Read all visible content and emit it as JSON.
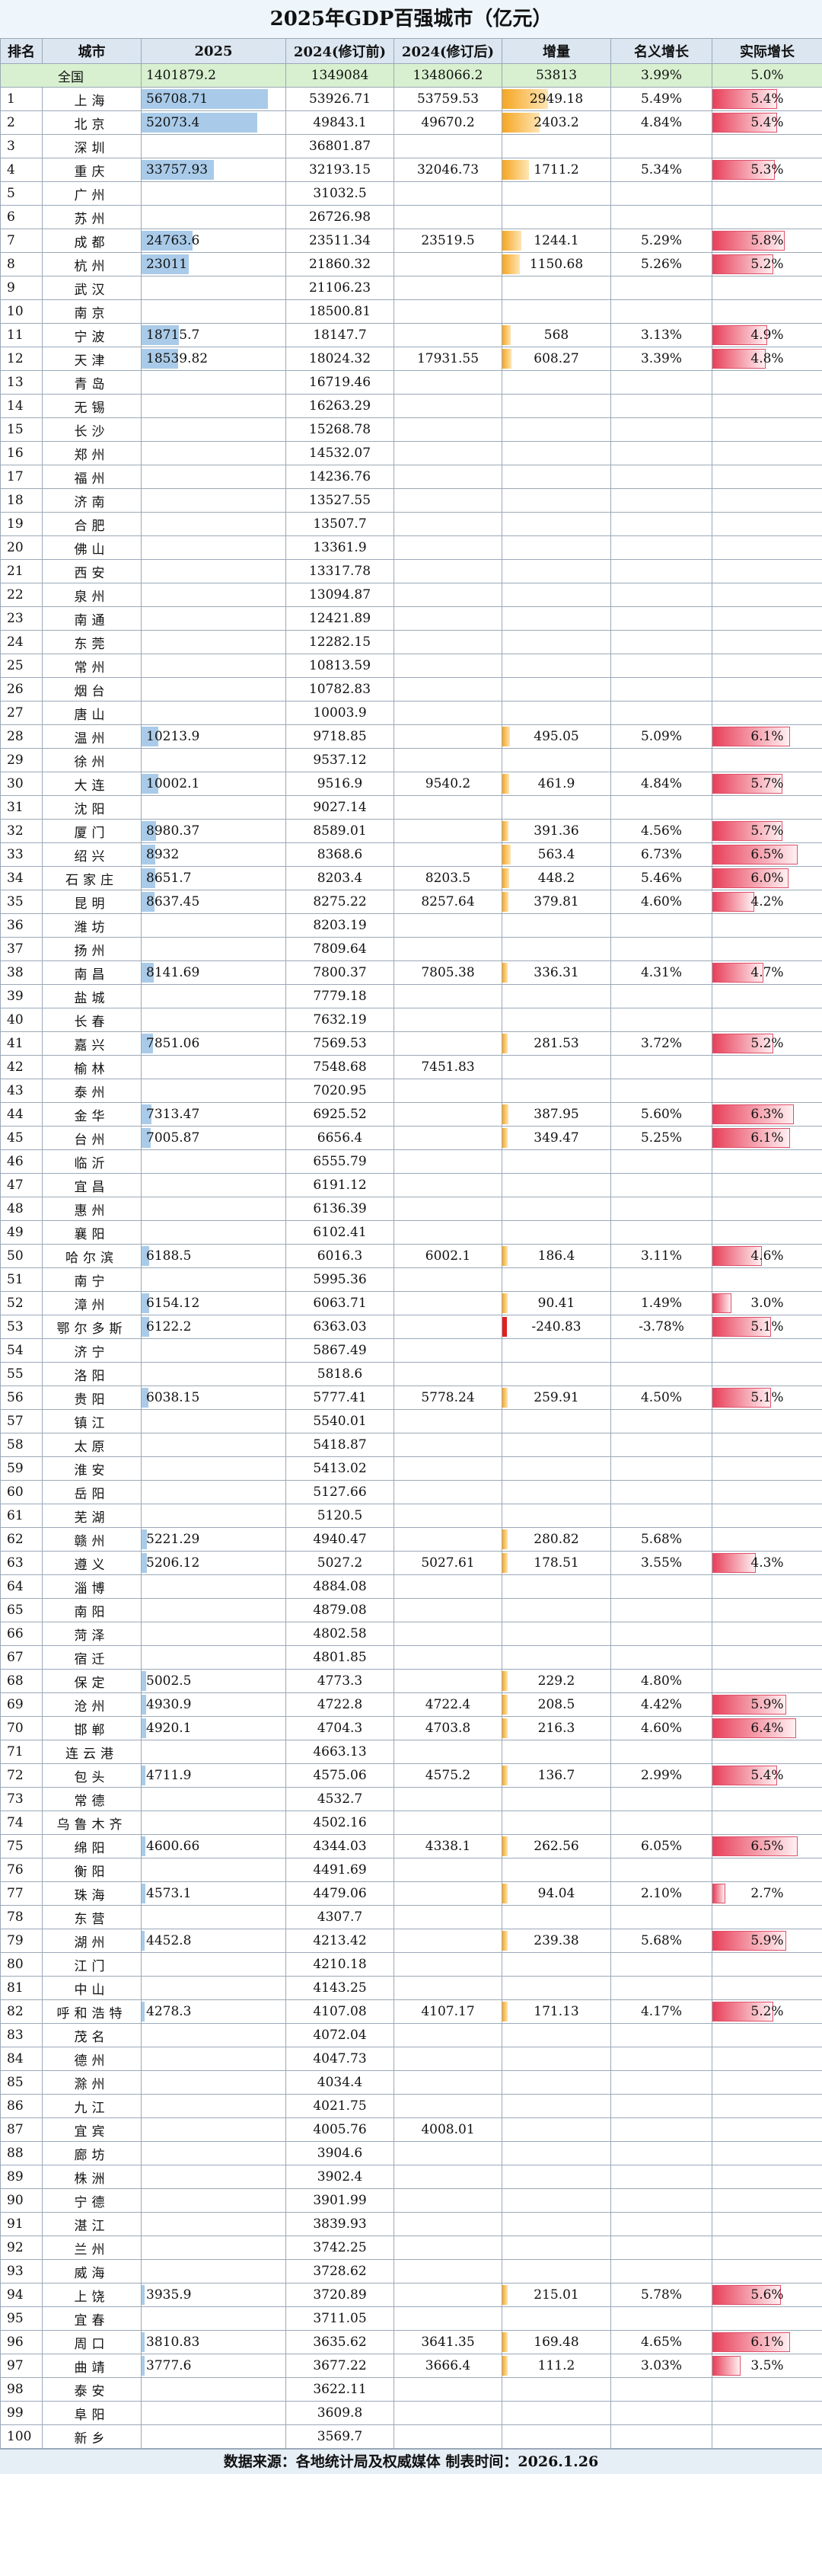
{
  "title": "2025年GDP百强城市（亿元）",
  "headers": {
    "rank": "排名",
    "city": "城市",
    "y2025": "2025",
    "y2024pre": "2024(修订前)",
    "y2024post": "2024(修订后)",
    "increase": "增量",
    "nominal": "名义增长",
    "real": "实际增长"
  },
  "total": {
    "label": "全国",
    "y2025": "1401879.2",
    "y2024pre": "1349084",
    "y2024post": "1348066.2",
    "increase": "53813",
    "nominal": "3.99%",
    "real": "5.0%"
  },
  "rows": [
    {
      "rank": "1",
      "city": "上海",
      "v25": "56708.71",
      "pre": "53926.71",
      "post": "53759.53",
      "inc": "2949.18",
      "nom": "5.49%",
      "real": "5.4%"
    },
    {
      "rank": "2",
      "city": "北京",
      "v25": "52073.4",
      "pre": "49843.1",
      "post": "49670.2",
      "inc": "2403.2",
      "nom": "4.84%",
      "real": "5.4%"
    },
    {
      "rank": "3",
      "city": "深圳",
      "v25": "",
      "pre": "36801.87",
      "post": "",
      "inc": "",
      "nom": "",
      "real": ""
    },
    {
      "rank": "4",
      "city": "重庆",
      "v25": "33757.93",
      "pre": "32193.15",
      "post": "32046.73",
      "inc": "1711.2",
      "nom": "5.34%",
      "real": "5.3%"
    },
    {
      "rank": "5",
      "city": "广州",
      "v25": "",
      "pre": "31032.5",
      "post": "",
      "inc": "",
      "nom": "",
      "real": ""
    },
    {
      "rank": "6",
      "city": "苏州",
      "v25": "",
      "pre": "26726.98",
      "post": "",
      "inc": "",
      "nom": "",
      "real": ""
    },
    {
      "rank": "7",
      "city": "成都",
      "v25": "24763.6",
      "pre": "23511.34",
      "post": "23519.5",
      "inc": "1244.1",
      "nom": "5.29%",
      "real": "5.8%"
    },
    {
      "rank": "8",
      "city": "杭州",
      "v25": "23011",
      "pre": "21860.32",
      "post": "",
      "inc": "1150.68",
      "nom": "5.26%",
      "real": "5.2%"
    },
    {
      "rank": "9",
      "city": "武汉",
      "v25": "",
      "pre": "21106.23",
      "post": "",
      "inc": "",
      "nom": "",
      "real": ""
    },
    {
      "rank": "10",
      "city": "南京",
      "v25": "",
      "pre": "18500.81",
      "post": "",
      "inc": "",
      "nom": "",
      "real": ""
    },
    {
      "rank": "11",
      "city": "宁波",
      "v25": "18715.7",
      "pre": "18147.7",
      "post": "",
      "inc": "568",
      "nom": "3.13%",
      "real": "4.9%"
    },
    {
      "rank": "12",
      "city": "天津",
      "v25": "18539.82",
      "pre": "18024.32",
      "post": "17931.55",
      "inc": "608.27",
      "nom": "3.39%",
      "real": "4.8%"
    },
    {
      "rank": "13",
      "city": "青岛",
      "v25": "",
      "pre": "16719.46",
      "post": "",
      "inc": "",
      "nom": "",
      "real": ""
    },
    {
      "rank": "14",
      "city": "无锡",
      "v25": "",
      "pre": "16263.29",
      "post": "",
      "inc": "",
      "nom": "",
      "real": ""
    },
    {
      "rank": "15",
      "city": "长沙",
      "v25": "",
      "pre": "15268.78",
      "post": "",
      "inc": "",
      "nom": "",
      "real": ""
    },
    {
      "rank": "16",
      "city": "郑州",
      "v25": "",
      "pre": "14532.07",
      "post": "",
      "inc": "",
      "nom": "",
      "real": ""
    },
    {
      "rank": "17",
      "city": "福州",
      "v25": "",
      "pre": "14236.76",
      "post": "",
      "inc": "",
      "nom": "",
      "real": ""
    },
    {
      "rank": "18",
      "city": "济南",
      "v25": "",
      "pre": "13527.55",
      "post": "",
      "inc": "",
      "nom": "",
      "real": ""
    },
    {
      "rank": "19",
      "city": "合肥",
      "v25": "",
      "pre": "13507.7",
      "post": "",
      "inc": "",
      "nom": "",
      "real": ""
    },
    {
      "rank": "20",
      "city": "佛山",
      "v25": "",
      "pre": "13361.9",
      "post": "",
      "inc": "",
      "nom": "",
      "real": ""
    },
    {
      "rank": "21",
      "city": "西安",
      "v25": "",
      "pre": "13317.78",
      "post": "",
      "inc": "",
      "nom": "",
      "real": ""
    },
    {
      "rank": "22",
      "city": "泉州",
      "v25": "",
      "pre": "13094.87",
      "post": "",
      "inc": "",
      "nom": "",
      "real": ""
    },
    {
      "rank": "23",
      "city": "南通",
      "v25": "",
      "pre": "12421.89",
      "post": "",
      "inc": "",
      "nom": "",
      "real": ""
    },
    {
      "rank": "24",
      "city": "东莞",
      "v25": "",
      "pre": "12282.15",
      "post": "",
      "inc": "",
      "nom": "",
      "real": ""
    },
    {
      "rank": "25",
      "city": "常州",
      "v25": "",
      "pre": "10813.59",
      "post": "",
      "inc": "",
      "nom": "",
      "real": ""
    },
    {
      "rank": "26",
      "city": "烟台",
      "v25": "",
      "pre": "10782.83",
      "post": "",
      "inc": "",
      "nom": "",
      "real": ""
    },
    {
      "rank": "27",
      "city": "唐山",
      "v25": "",
      "pre": "10003.9",
      "post": "",
      "inc": "",
      "nom": "",
      "real": ""
    },
    {
      "rank": "28",
      "city": "温州",
      "v25": "10213.9",
      "pre": "9718.85",
      "post": "",
      "inc": "495.05",
      "nom": "5.09%",
      "real": "6.1%"
    },
    {
      "rank": "29",
      "city": "徐州",
      "v25": "",
      "pre": "9537.12",
      "post": "",
      "inc": "",
      "nom": "",
      "real": ""
    },
    {
      "rank": "30",
      "city": "大连",
      "v25": "10002.1",
      "pre": "9516.9",
      "post": "9540.2",
      "inc": "461.9",
      "nom": "4.84%",
      "real": "5.7%"
    },
    {
      "rank": "31",
      "city": "沈阳",
      "v25": "",
      "pre": "9027.14",
      "post": "",
      "inc": "",
      "nom": "",
      "real": ""
    },
    {
      "rank": "32",
      "city": "厦门",
      "v25": "8980.37",
      "pre": "8589.01",
      "post": "",
      "inc": "391.36",
      "nom": "4.56%",
      "real": "5.7%"
    },
    {
      "rank": "33",
      "city": "绍兴",
      "v25": "8932",
      "pre": "8368.6",
      "post": "",
      "inc": "563.4",
      "nom": "6.73%",
      "real": "6.5%"
    },
    {
      "rank": "34",
      "city": "石家庄",
      "v25": "8651.7",
      "pre": "8203.4",
      "post": "8203.5",
      "inc": "448.2",
      "nom": "5.46%",
      "real": "6.0%"
    },
    {
      "rank": "35",
      "city": "昆明",
      "v25": "8637.45",
      "pre": "8275.22",
      "post": "8257.64",
      "inc": "379.81",
      "nom": "4.60%",
      "real": "4.2%"
    },
    {
      "rank": "36",
      "city": "潍坊",
      "v25": "",
      "pre": "8203.19",
      "post": "",
      "inc": "",
      "nom": "",
      "real": ""
    },
    {
      "rank": "37",
      "city": "扬州",
      "v25": "",
      "pre": "7809.64",
      "post": "",
      "inc": "",
      "nom": "",
      "real": ""
    },
    {
      "rank": "38",
      "city": "南昌",
      "v25": "8141.69",
      "pre": "7800.37",
      "post": "7805.38",
      "inc": "336.31",
      "nom": "4.31%",
      "real": "4.7%"
    },
    {
      "rank": "39",
      "city": "盐城",
      "v25": "",
      "pre": "7779.18",
      "post": "",
      "inc": "",
      "nom": "",
      "real": ""
    },
    {
      "rank": "40",
      "city": "长春",
      "v25": "",
      "pre": "7632.19",
      "post": "",
      "inc": "",
      "nom": "",
      "real": ""
    },
    {
      "rank": "41",
      "city": "嘉兴",
      "v25": "7851.06",
      "pre": "7569.53",
      "post": "",
      "inc": "281.53",
      "nom": "3.72%",
      "real": "5.2%"
    },
    {
      "rank": "42",
      "city": "榆林",
      "v25": "",
      "pre": "7548.68",
      "post": "7451.83",
      "inc": "",
      "nom": "",
      "real": ""
    },
    {
      "rank": "43",
      "city": "泰州",
      "v25": "",
      "pre": "7020.95",
      "post": "",
      "inc": "",
      "nom": "",
      "real": ""
    },
    {
      "rank": "44",
      "city": "金华",
      "v25": "7313.47",
      "pre": "6925.52",
      "post": "",
      "inc": "387.95",
      "nom": "5.60%",
      "real": "6.3%"
    },
    {
      "rank": "45",
      "city": "台州",
      "v25": "7005.87",
      "pre": "6656.4",
      "post": "",
      "inc": "349.47",
      "nom": "5.25%",
      "real": "6.1%"
    },
    {
      "rank": "46",
      "city": "临沂",
      "v25": "",
      "pre": "6555.79",
      "post": "",
      "inc": "",
      "nom": "",
      "real": ""
    },
    {
      "rank": "47",
      "city": "宜昌",
      "v25": "",
      "pre": "6191.12",
      "post": "",
      "inc": "",
      "nom": "",
      "real": ""
    },
    {
      "rank": "48",
      "city": "惠州",
      "v25": "",
      "pre": "6136.39",
      "post": "",
      "inc": "",
      "nom": "",
      "real": ""
    },
    {
      "rank": "49",
      "city": "襄阳",
      "v25": "",
      "pre": "6102.41",
      "post": "",
      "inc": "",
      "nom": "",
      "real": ""
    },
    {
      "rank": "50",
      "city": "哈尔滨",
      "v25": "6188.5",
      "pre": "6016.3",
      "post": "6002.1",
      "inc": "186.4",
      "nom": "3.11%",
      "real": "4.6%"
    },
    {
      "rank": "51",
      "city": "南宁",
      "v25": "",
      "pre": "5995.36",
      "post": "",
      "inc": "",
      "nom": "",
      "real": ""
    },
    {
      "rank": "52",
      "city": "漳州",
      "v25": "6154.12",
      "pre": "6063.71",
      "post": "",
      "inc": "90.41",
      "nom": "1.49%",
      "real": "3.0%"
    },
    {
      "rank": "53",
      "city": "鄂尔多斯",
      "v25": "6122.2",
      "pre": "6363.03",
      "post": "",
      "inc": "-240.83",
      "nom": "-3.78%",
      "real": "5.1%"
    },
    {
      "rank": "54",
      "city": "济宁",
      "v25": "",
      "pre": "5867.49",
      "post": "",
      "inc": "",
      "nom": "",
      "real": ""
    },
    {
      "rank": "55",
      "city": "洛阳",
      "v25": "",
      "pre": "5818.6",
      "post": "",
      "inc": "",
      "nom": "",
      "real": ""
    },
    {
      "rank": "56",
      "city": "贵阳",
      "v25": "6038.15",
      "pre": "5777.41",
      "post": "5778.24",
      "inc": "259.91",
      "nom": "4.50%",
      "real": "5.1%"
    },
    {
      "rank": "57",
      "city": "镇江",
      "v25": "",
      "pre": "5540.01",
      "post": "",
      "inc": "",
      "nom": "",
      "real": ""
    },
    {
      "rank": "58",
      "city": "太原",
      "v25": "",
      "pre": "5418.87",
      "post": "",
      "inc": "",
      "nom": "",
      "real": ""
    },
    {
      "rank": "59",
      "city": "淮安",
      "v25": "",
      "pre": "5413.02",
      "post": "",
      "inc": "",
      "nom": "",
      "real": ""
    },
    {
      "rank": "60",
      "city": "岳阳",
      "v25": "",
      "pre": "5127.66",
      "post": "",
      "inc": "",
      "nom": "",
      "real": ""
    },
    {
      "rank": "61",
      "city": "芜湖",
      "v25": "",
      "pre": "5120.5",
      "post": "",
      "inc": "",
      "nom": "",
      "real": ""
    },
    {
      "rank": "62",
      "city": "赣州",
      "v25": "5221.29",
      "pre": "4940.47",
      "post": "",
      "inc": "280.82",
      "nom": "5.68%",
      "real": ""
    },
    {
      "rank": "63",
      "city": "遵义",
      "v25": "5206.12",
      "pre": "5027.2",
      "post": "5027.61",
      "inc": "178.51",
      "nom": "3.55%",
      "real": "4.3%"
    },
    {
      "rank": "64",
      "city": "淄博",
      "v25": "",
      "pre": "4884.08",
      "post": "",
      "inc": "",
      "nom": "",
      "real": ""
    },
    {
      "rank": "65",
      "city": "南阳",
      "v25": "",
      "pre": "4879.08",
      "post": "",
      "inc": "",
      "nom": "",
      "real": ""
    },
    {
      "rank": "66",
      "city": "菏泽",
      "v25": "",
      "pre": "4802.58",
      "post": "",
      "inc": "",
      "nom": "",
      "real": ""
    },
    {
      "rank": "67",
      "city": "宿迁",
      "v25": "",
      "pre": "4801.85",
      "post": "",
      "inc": "",
      "nom": "",
      "real": ""
    },
    {
      "rank": "68",
      "city": "保定",
      "v25": "5002.5",
      "pre": "4773.3",
      "post": "",
      "inc": "229.2",
      "nom": "4.80%",
      "real": ""
    },
    {
      "rank": "69",
      "city": "沧州",
      "v25": "4930.9",
      "pre": "4722.8",
      "post": "4722.4",
      "inc": "208.5",
      "nom": "4.42%",
      "real": "5.9%"
    },
    {
      "rank": "70",
      "city": "邯郸",
      "v25": "4920.1",
      "pre": "4704.3",
      "post": "4703.8",
      "inc": "216.3",
      "nom": "4.60%",
      "real": "6.4%"
    },
    {
      "rank": "71",
      "city": "连云港",
      "v25": "",
      "pre": "4663.13",
      "post": "",
      "inc": "",
      "nom": "",
      "real": ""
    },
    {
      "rank": "72",
      "city": "包头",
      "v25": "4711.9",
      "pre": "4575.06",
      "post": "4575.2",
      "inc": "136.7",
      "nom": "2.99%",
      "real": "5.4%"
    },
    {
      "rank": "73",
      "city": "常德",
      "v25": "",
      "pre": "4532.7",
      "post": "",
      "inc": "",
      "nom": "",
      "real": ""
    },
    {
      "rank": "74",
      "city": "乌鲁木齐",
      "v25": "",
      "pre": "4502.16",
      "post": "",
      "inc": "",
      "nom": "",
      "real": ""
    },
    {
      "rank": "75",
      "city": "绵阳",
      "v25": "4600.66",
      "pre": "4344.03",
      "post": "4338.1",
      "inc": "262.56",
      "nom": "6.05%",
      "real": "6.5%"
    },
    {
      "rank": "76",
      "city": "衡阳",
      "v25": "",
      "pre": "4491.69",
      "post": "",
      "inc": "",
      "nom": "",
      "real": ""
    },
    {
      "rank": "77",
      "city": "珠海",
      "v25": "4573.1",
      "pre": "4479.06",
      "post": "",
      "inc": "94.04",
      "nom": "2.10%",
      "real": "2.7%"
    },
    {
      "rank": "78",
      "city": "东营",
      "v25": "",
      "pre": "4307.7",
      "post": "",
      "inc": "",
      "nom": "",
      "real": ""
    },
    {
      "rank": "79",
      "city": "湖州",
      "v25": "4452.8",
      "pre": "4213.42",
      "post": "",
      "inc": "239.38",
      "nom": "5.68%",
      "real": "5.9%"
    },
    {
      "rank": "80",
      "city": "江门",
      "v25": "",
      "pre": "4210.18",
      "post": "",
      "inc": "",
      "nom": "",
      "real": ""
    },
    {
      "rank": "81",
      "city": "中山",
      "v25": "",
      "pre": "4143.25",
      "post": "",
      "inc": "",
      "nom": "",
      "real": ""
    },
    {
      "rank": "82",
      "city": "呼和浩特",
      "v25": "4278.3",
      "pre": "4107.08",
      "post": "4107.17",
      "inc": "171.13",
      "nom": "4.17%",
      "real": "5.2%"
    },
    {
      "rank": "83",
      "city": "茂名",
      "v25": "",
      "pre": "4072.04",
      "post": "",
      "inc": "",
      "nom": "",
      "real": ""
    },
    {
      "rank": "84",
      "city": "德州",
      "v25": "",
      "pre": "4047.73",
      "post": "",
      "inc": "",
      "nom": "",
      "real": ""
    },
    {
      "rank": "85",
      "city": "滁州",
      "v25": "",
      "pre": "4034.4",
      "post": "",
      "inc": "",
      "nom": "",
      "real": ""
    },
    {
      "rank": "86",
      "city": "九江",
      "v25": "",
      "pre": "4021.75",
      "post": "",
      "inc": "",
      "nom": "",
      "real": ""
    },
    {
      "rank": "87",
      "city": "宜宾",
      "v25": "",
      "pre": "4005.76",
      "post": "4008.01",
      "inc": "",
      "nom": "",
      "real": ""
    },
    {
      "rank": "88",
      "city": "廊坊",
      "v25": "",
      "pre": "3904.6",
      "post": "",
      "inc": "",
      "nom": "",
      "real": ""
    },
    {
      "rank": "89",
      "city": "株洲",
      "v25": "",
      "pre": "3902.4",
      "post": "",
      "inc": "",
      "nom": "",
      "real": ""
    },
    {
      "rank": "90",
      "city": "宁德",
      "v25": "",
      "pre": "3901.99",
      "post": "",
      "inc": "",
      "nom": "",
      "real": ""
    },
    {
      "rank": "91",
      "city": "湛江",
      "v25": "",
      "pre": "3839.93",
      "post": "",
      "inc": "",
      "nom": "",
      "real": ""
    },
    {
      "rank": "92",
      "city": "兰州",
      "v25": "",
      "pre": "3742.25",
      "post": "",
      "inc": "",
      "nom": "",
      "real": ""
    },
    {
      "rank": "93",
      "city": "威海",
      "v25": "",
      "pre": "3728.62",
      "post": "",
      "inc": "",
      "nom": "",
      "real": ""
    },
    {
      "rank": "94",
      "city": "上饶",
      "v25": "3935.9",
      "pre": "3720.89",
      "post": "",
      "inc": "215.01",
      "nom": "5.78%",
      "real": "5.6%"
    },
    {
      "rank": "95",
      "city": "宜春",
      "v25": "",
      "pre": "3711.05",
      "post": "",
      "inc": "",
      "nom": "",
      "real": ""
    },
    {
      "rank": "96",
      "city": "周口",
      "v25": "3810.83",
      "pre": "3635.62",
      "post": "3641.35",
      "inc": "169.48",
      "nom": "4.65%",
      "real": "6.1%"
    },
    {
      "rank": "97",
      "city": "曲靖",
      "v25": "3777.6",
      "pre": "3677.22",
      "post": "3666.4",
      "inc": "111.2",
      "nom": "3.03%",
      "real": "3.5%"
    },
    {
      "rank": "98",
      "city": "泰安",
      "v25": "",
      "pre": "3622.11",
      "post": "",
      "inc": "",
      "nom": "",
      "real": ""
    },
    {
      "rank": "99",
      "city": "阜阳",
      "v25": "",
      "pre": "3609.8",
      "post": "",
      "inc": "",
      "nom": "",
      "real": ""
    },
    {
      "rank": "100",
      "city": "新乡",
      "v25": "",
      "pre": "3569.7",
      "post": "",
      "inc": "",
      "nom": "",
      "real": ""
    }
  ],
  "footer": "数据来源：各地统计局及权威媒体   制表时间：2026.1.26"
}
